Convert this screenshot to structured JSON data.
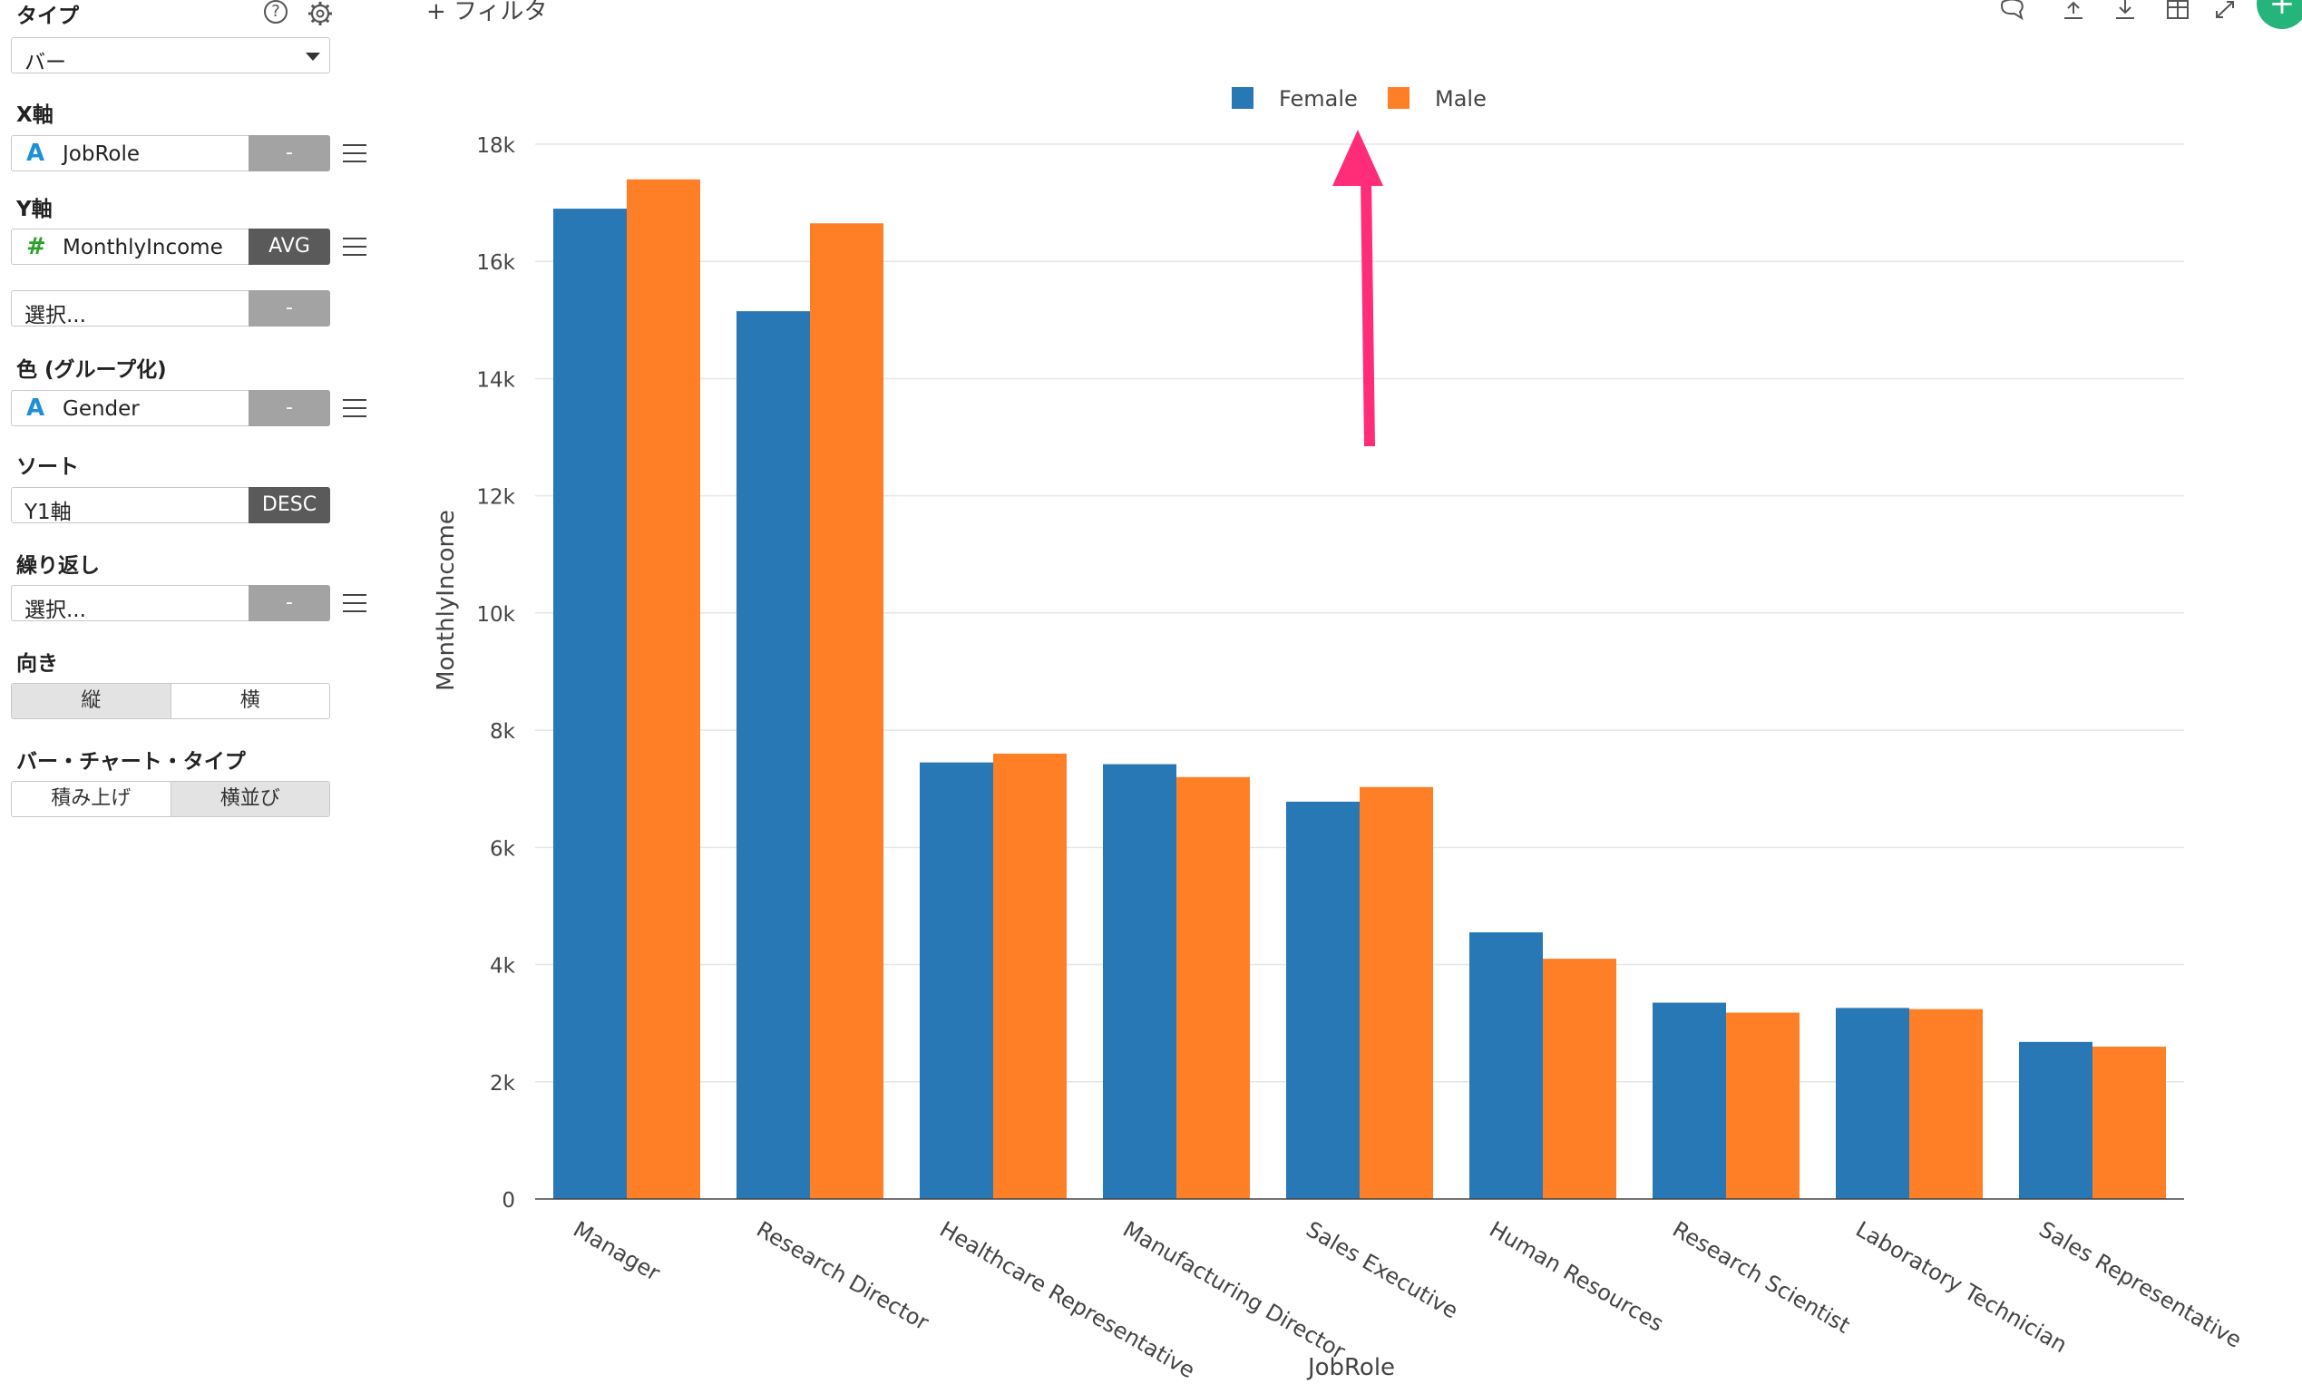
{
  "panel": {
    "type_title": "タイプ",
    "type_value": "バー",
    "x_title": "X軸",
    "x_field": "JobRole",
    "x_seg": "-",
    "y_title": "Y軸",
    "y_field": "MonthlyIncome",
    "y_seg": "AVG",
    "y2_placeholder": "選択...",
    "y2_seg": "-",
    "color_title": "色 (グループ化)",
    "color_field": "Gender",
    "color_seg": "-",
    "sort_title": "ソート",
    "sort_field": "Y1軸",
    "sort_seg": "DESC",
    "repeat_title": "繰り返し",
    "repeat_placeholder": "選択...",
    "repeat_seg": "-",
    "orient_title": "向き",
    "orient_options": [
      "縦",
      "横"
    ],
    "bartype_title": "バー・チャート・タイプ",
    "bartype_options": [
      "積み上げ",
      "横並び"
    ],
    "help_icon": "?",
    "type_icon_text": "A",
    "num_icon_text": "#"
  },
  "toolbar": {
    "filter_label": "+ フィルタ",
    "icons": [
      "comment-icon",
      "upload-icon",
      "download-icon",
      "table-icon",
      "expand-icon"
    ],
    "fab_label": "+"
  },
  "colors": {
    "female": "#2778b4",
    "male": "#ff7f27",
    "arrow": "#ff2d78"
  },
  "chart_data": {
    "type": "bar",
    "xlabel": "JobRole",
    "ylabel": "MonthlyIncome",
    "ylim": [
      0,
      18000
    ],
    "yticks": [
      "0",
      "2k",
      "4k",
      "6k",
      "8k",
      "10k",
      "12k",
      "14k",
      "16k",
      "18k"
    ],
    "legend_position": "top",
    "grid": true,
    "categories": [
      "Manager",
      "Research Director",
      "Healthcare Representative",
      "Manufacturing Director",
      "Sales Executive",
      "Human Resources",
      "Research Scientist",
      "Laboratory Technician",
      "Sales Representative"
    ],
    "series": [
      {
        "name": "Female",
        "values": [
          16900,
          15150,
          7450,
          7420,
          6780,
          4550,
          3350,
          3260,
          2680
        ]
      },
      {
        "name": "Male",
        "values": [
          17400,
          16650,
          7600,
          7200,
          7030,
          4100,
          3180,
          3240,
          2600
        ]
      }
    ]
  }
}
